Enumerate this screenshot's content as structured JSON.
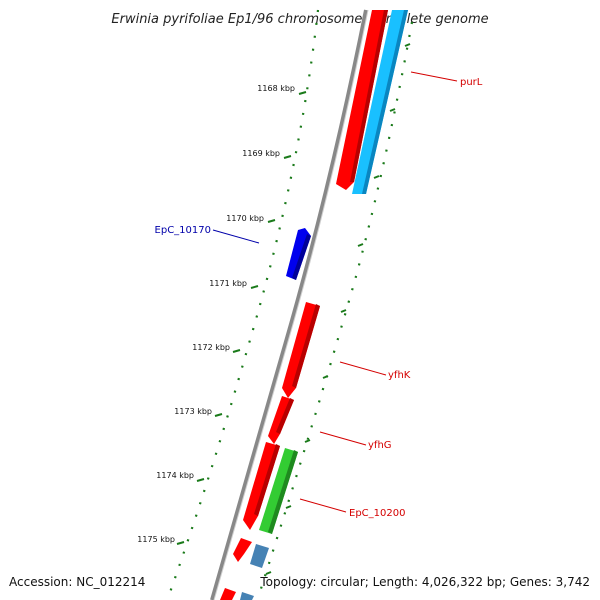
{
  "title": "Erwinia pyrifoliae Ep1/96 chromosome, complete genome",
  "footer": {
    "accession": "Accession: NC_012214",
    "summary": "Topology: circular; Length: 4,026,322 bp; Genes: 3,742"
  },
  "ticks": [
    {
      "label": "1168 kbp"
    },
    {
      "label": "1169 kbp"
    },
    {
      "label": "1170 kbp"
    },
    {
      "label": "1171 kbp"
    },
    {
      "label": "1172 kbp"
    },
    {
      "label": "1173 kbp"
    },
    {
      "label": "1174 kbp"
    },
    {
      "label": "1175 kbp"
    }
  ],
  "gene_labels": [
    {
      "name": "purL",
      "color": "#d40000"
    },
    {
      "name": "EpC_10170",
      "color": "#0000aa"
    },
    {
      "name": "yfhK",
      "color": "#d40000"
    },
    {
      "name": "yfhG",
      "color": "#d40000"
    },
    {
      "name": "EpC_10200",
      "color": "#d40000"
    }
  ],
  "colors": {
    "backbone": "#8a8a8a",
    "gene_red": "#ff0000",
    "gene_cyan": "#19c0ff",
    "gene_blue": "#0000ee",
    "gene_green": "#33cc33",
    "gene_steel": "#4682b4",
    "ruler": "#1a7a1a"
  }
}
